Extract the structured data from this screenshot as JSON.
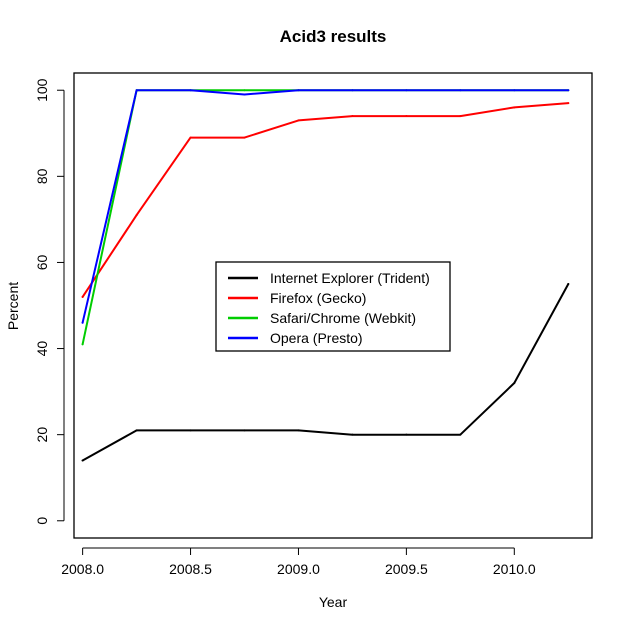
{
  "chart_data": {
    "type": "line",
    "title": "Acid3 results",
    "xlabel": "Year",
    "ylabel": "Percent",
    "xlim": [
      2007.96,
      2010.36
    ],
    "ylim": [
      -4,
      104
    ],
    "x_ticks": [
      2008.0,
      2008.5,
      2009.0,
      2009.5,
      2010.0
    ],
    "x_tick_labels": [
      "2008.0",
      "2008.5",
      "2009.0",
      "2009.5",
      "2010.0"
    ],
    "y_ticks": [
      0,
      20,
      40,
      60,
      80,
      100
    ],
    "y_tick_labels": [
      "0",
      "20",
      "40",
      "60",
      "80",
      "100"
    ],
    "grid": false,
    "legend_position": "center",
    "x": [
      2008.0,
      2008.25,
      2008.5,
      2008.75,
      2009.0,
      2009.25,
      2009.5,
      2009.75,
      2010.0,
      2010.25
    ],
    "series": [
      {
        "name": "Internet Explorer (Trident)",
        "color": "#000000",
        "values": [
          14,
          21,
          21,
          21,
          21,
          20,
          20,
          20,
          32,
          55
        ]
      },
      {
        "name": "Firefox (Gecko)",
        "color": "#ff0000",
        "values": [
          52,
          71,
          89,
          89,
          93,
          94,
          94,
          94,
          96,
          97
        ]
      },
      {
        "name": "Safari/Chrome (Webkit)",
        "color": "#00cd00",
        "values": [
          41,
          100,
          100,
          100,
          100,
          100,
          100,
          100,
          100,
          100
        ]
      },
      {
        "name": "Opera (Presto)",
        "color": "#0000ff",
        "values": [
          46,
          100,
          100,
          99,
          100,
          100,
          100,
          100,
          100,
          100
        ]
      }
    ]
  }
}
